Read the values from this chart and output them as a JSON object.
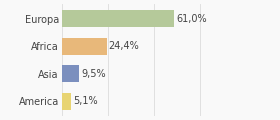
{
  "categories": [
    "Europa",
    "Africa",
    "Asia",
    "America"
  ],
  "values": [
    61.0,
    24.4,
    9.5,
    5.1
  ],
  "labels": [
    "61,0%",
    "24,4%",
    "9,5%",
    "5,1%"
  ],
  "bar_colors": [
    "#b5c99a",
    "#e8b87a",
    "#7b8fbe",
    "#e8d472"
  ],
  "xlim": [
    0,
    85
  ],
  "background_color": "#f9f9f9",
  "bar_height": 0.62,
  "label_fontsize": 7.0,
  "ytick_fontsize": 7.0,
  "grid_color": "#e0e0e0",
  "grid_ticks": [
    0,
    25,
    50,
    75
  ]
}
